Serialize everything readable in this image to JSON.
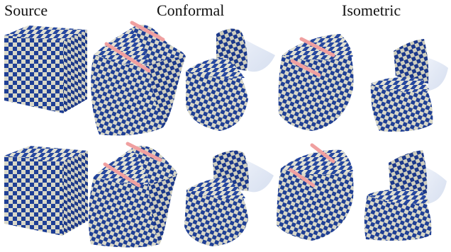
{
  "figure": {
    "headers": {
      "source": "Source",
      "conformal": "Conformal",
      "isometric": "Isometric"
    },
    "rows": [
      {
        "panels": [
          "source-cube",
          "conformal-a",
          "conformal-b",
          "isometric-a",
          "isometric-b"
        ]
      },
      {
        "panels": [
          "source-cube",
          "conformal-a",
          "conformal-b",
          "isometric-a",
          "isometric-b"
        ]
      }
    ]
  },
  "colors": {
    "checker_dark": "#1f3f95",
    "checker_light": "#d9d8c8",
    "handle": "#f0a0a0",
    "ghost": "#d8e2f2",
    "background": "#ffffff"
  }
}
